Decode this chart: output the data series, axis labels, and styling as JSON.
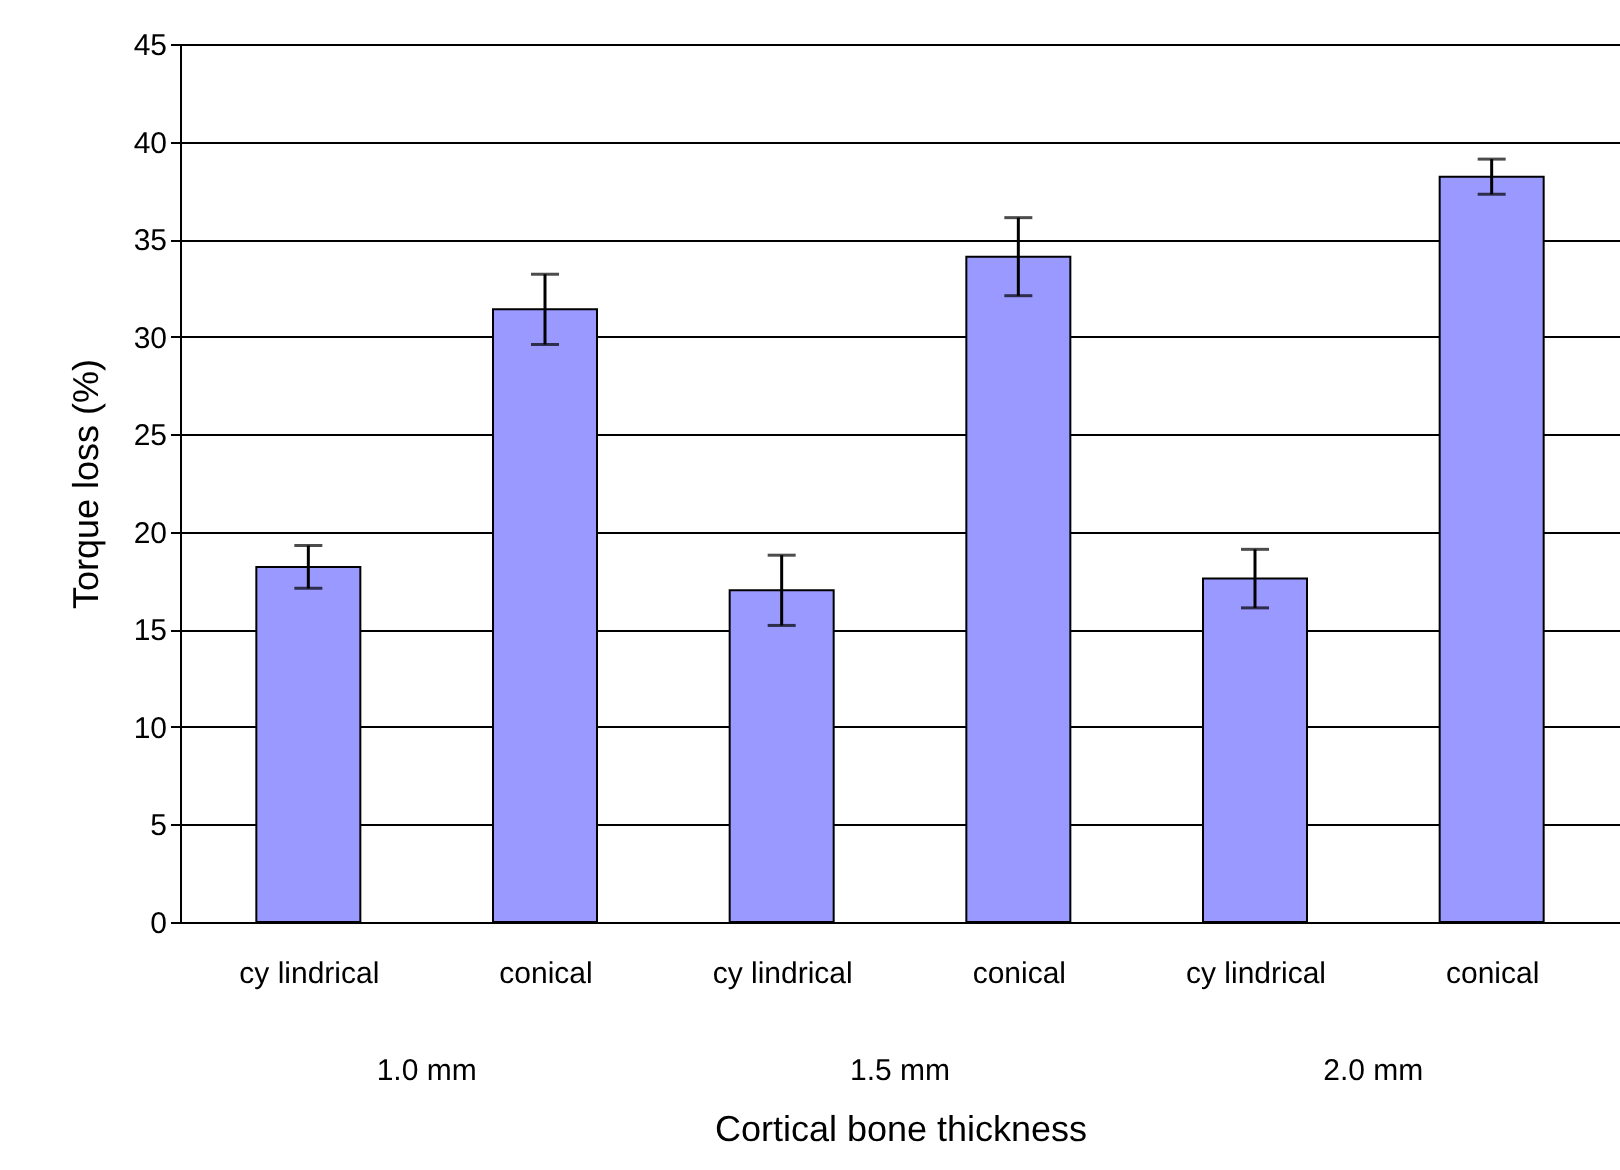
{
  "chart_data": {
    "type": "bar",
    "xlabel": "Cortical bone thickness",
    "ylabel": "Torque loss (%)",
    "categories": [
      "cy lindrical",
      "conical",
      "cy lindrical",
      "conical",
      "cy lindrical",
      "conical"
    ],
    "values": [
      18.2,
      31.4,
      17.0,
      34.1,
      17.6,
      38.2
    ],
    "errors": [
      1.1,
      1.8,
      1.8,
      2.0,
      1.5,
      0.9
    ],
    "color": "#9999ff",
    "annotations": [
      "1.0 mm",
      "1.5 mm",
      "2.0 mm"
    ],
    "ylim": [
      0,
      45
    ],
    "yticks": [
      0,
      5,
      10,
      15,
      20,
      25,
      30,
      35,
      40,
      45
    ],
    "grid": "y"
  }
}
